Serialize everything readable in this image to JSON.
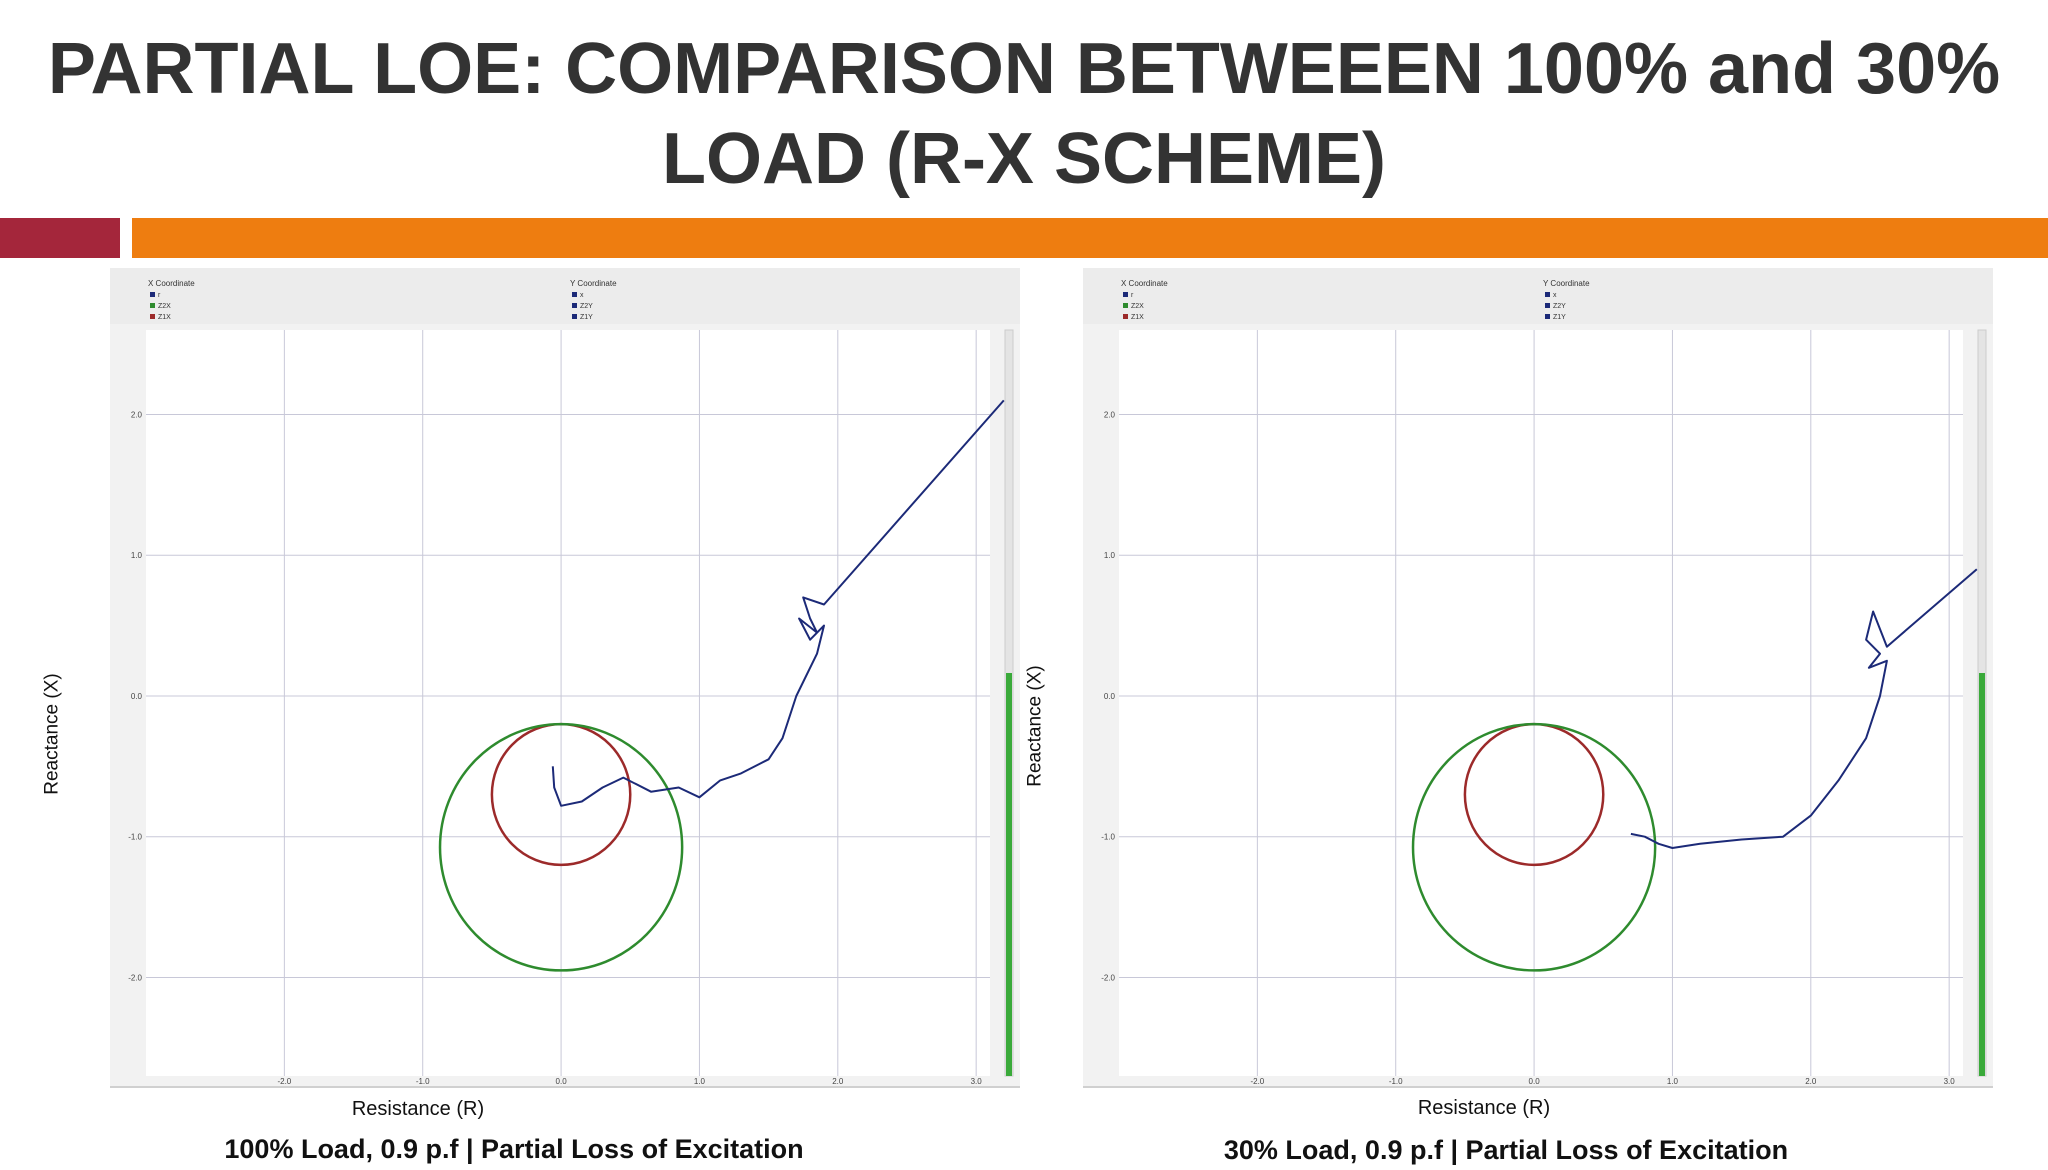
{
  "slide": {
    "title": "PARTIAL LOE: COMPARISON BETWEEEN 100% and 30% LOAD (R-X SCHEME)"
  },
  "colors": {
    "accent_red": "#a4263b",
    "accent_orange": "#ee7d10",
    "trajectory": "#1c2a78",
    "outer_circle": "#2e8b2e",
    "inner_circle": "#9c2a2a",
    "grid": "#c8c8d8",
    "scrollbar": "#3aaa3a"
  },
  "legend": {
    "x_header": "X Coordinate",
    "y_header": "Y Coordinate",
    "x_items": [
      "r",
      "Z2X",
      "Z1X"
    ],
    "y_items": [
      "x",
      "Z2Y",
      "Z1Y"
    ]
  },
  "chart_data": [
    {
      "type": "scatter",
      "subtitle": "100% Load, 0.9 p.f | Partial Loss of Excitation",
      "xlabel": "Resistance (R)",
      "ylabel": "Reactance (X)",
      "xlim": [
        -3.0,
        3.1
      ],
      "ylim": [
        -2.7,
        2.6
      ],
      "x_ticks": [
        "-2.0",
        "-1.0",
        "0.0",
        "1.0",
        "2.0",
        "3.0"
      ],
      "y_ticks": [
        "2.0",
        "1.0",
        "0.0",
        "-1.0",
        "-2.0"
      ],
      "grid": true,
      "series": [
        {
          "name": "Z1X",
          "shape": "circle",
          "center": [
            0.0,
            -0.7
          ],
          "radius": 0.5
        },
        {
          "name": "Z2X",
          "shape": "circle",
          "center": [
            0.0,
            -1.075
          ],
          "radius": 0.875
        },
        {
          "name": "x",
          "points": [
            [
              3.2,
              2.1
            ],
            [
              1.9,
              0.65
            ],
            [
              1.75,
              0.7
            ],
            [
              1.8,
              0.55
            ],
            [
              1.85,
              0.45
            ],
            [
              1.72,
              0.55
            ],
            [
              1.8,
              0.4
            ],
            [
              1.9,
              0.5
            ],
            [
              1.85,
              0.3
            ],
            [
              1.7,
              0.0
            ],
            [
              1.6,
              -0.3
            ],
            [
              1.5,
              -0.45
            ],
            [
              1.3,
              -0.55
            ],
            [
              1.15,
              -0.6
            ],
            [
              1.0,
              -0.72
            ],
            [
              0.85,
              -0.65
            ],
            [
              0.65,
              -0.68
            ],
            [
              0.45,
              -0.58
            ],
            [
              0.3,
              -0.65
            ],
            [
              0.15,
              -0.75
            ],
            [
              0.0,
              -0.78
            ],
            [
              -0.05,
              -0.65
            ],
            [
              -0.06,
              -0.5
            ]
          ]
        }
      ]
    },
    {
      "type": "scatter",
      "subtitle": "30% Load, 0.9 p.f | Partial Loss of Excitation",
      "xlabel": "Resistance (R)",
      "ylabel": "Reactance (X)",
      "xlim": [
        -3.0,
        3.1
      ],
      "ylim": [
        -2.7,
        2.6
      ],
      "x_ticks": [
        "-2.0",
        "-1.0",
        "0.0",
        "1.0",
        "2.0",
        "3.0"
      ],
      "y_ticks": [
        "2.0",
        "1.0",
        "0.0",
        "-1.0",
        "-2.0"
      ],
      "grid": true,
      "series": [
        {
          "name": "Z1X",
          "shape": "circle",
          "center": [
            0.0,
            -0.7
          ],
          "radius": 0.5
        },
        {
          "name": "Z2X",
          "shape": "circle",
          "center": [
            0.0,
            -1.075
          ],
          "radius": 0.875
        },
        {
          "name": "x",
          "points": [
            [
              3.2,
              0.9
            ],
            [
              2.55,
              0.35
            ],
            [
              2.45,
              0.6
            ],
            [
              2.4,
              0.4
            ],
            [
              2.5,
              0.3
            ],
            [
              2.42,
              0.2
            ],
            [
              2.55,
              0.25
            ],
            [
              2.5,
              0.0
            ],
            [
              2.4,
              -0.3
            ],
            [
              2.2,
              -0.6
            ],
            [
              2.0,
              -0.85
            ],
            [
              1.8,
              -1.0
            ],
            [
              1.5,
              -1.02
            ],
            [
              1.2,
              -1.05
            ],
            [
              1.0,
              -1.08
            ],
            [
              0.9,
              -1.05
            ],
            [
              0.8,
              -1.0
            ],
            [
              0.7,
              -0.98
            ]
          ]
        }
      ]
    }
  ]
}
